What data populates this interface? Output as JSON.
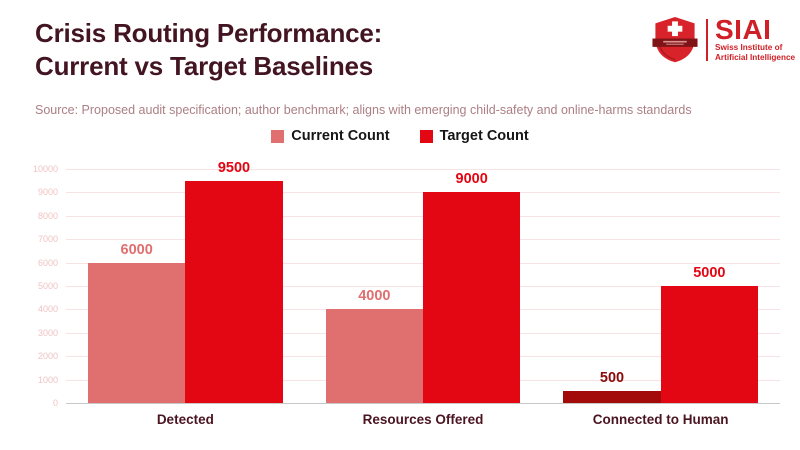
{
  "header": {
    "title_line1": "Crisis Routing Performance:",
    "title_line2": "Current vs Target Baselines",
    "logo": {
      "acronym": "SIAI",
      "name_line1": "Swiss Institute of",
      "name_line2": "Artificial Intelligence"
    }
  },
  "source_note": "Source: Proposed audit specification; author benchmark; aligns with emerging child-safety and online-harms standards",
  "legend": [
    {
      "label": "Current Count",
      "color": "#e06f6f"
    },
    {
      "label": "Target Count",
      "color": "#e30613"
    }
  ],
  "colors": {
    "title_text": "#431421",
    "source_text": "#ab7f84",
    "category_label": "#4a1520",
    "gridline": "#f7e3e3",
    "tick_label": "#f1c3c3",
    "axis_line": "#c8c8c8",
    "logo_red": "#cf2027",
    "shield_red": "#d8232a",
    "shield_banner": "#7f1416"
  },
  "chart_data": {
    "type": "bar",
    "title": "Crisis Routing Performance: Current vs Target Baselines",
    "categories": [
      "Detected",
      "Resources Offered",
      "Connected to Human"
    ],
    "series": [
      {
        "name": "Current Count",
        "values": [
          6000,
          4000,
          500
        ],
        "color": "#e06f6f",
        "bar_colors": [
          "#e06f6f",
          "#e06f6f",
          "#a30a0a"
        ],
        "label_colors": [
          "#e06f6f",
          "#e06f6f",
          "#8a0b0b"
        ]
      },
      {
        "name": "Target Count",
        "values": [
          9500,
          9000,
          5000
        ],
        "color": "#e30613",
        "bar_colors": [
          "#e30613",
          "#e30613",
          "#e30613"
        ],
        "label_colors": [
          "#e30613",
          "#e30613",
          "#e30613"
        ]
      }
    ],
    "xlabel": "",
    "ylabel": "",
    "ylim": [
      0,
      10000
    ],
    "ytick_step": 1000,
    "grid": true,
    "legend_position": "top",
    "value_labels": true
  }
}
